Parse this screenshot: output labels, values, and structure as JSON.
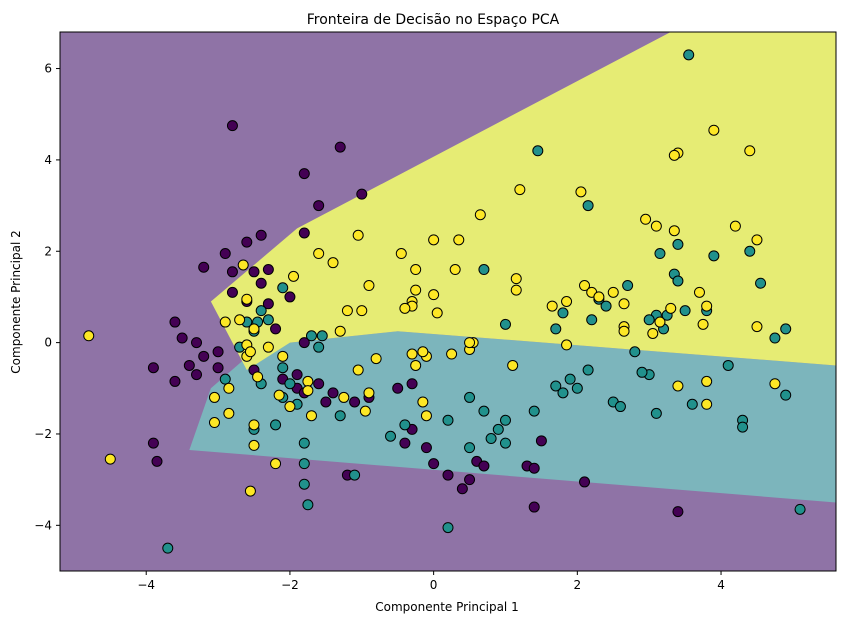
{
  "chart_data": {
    "type": "scatter",
    "title": "Fronteira de Decisão no Espaço PCA",
    "xlabel": "Componente Principal 1",
    "ylabel": "Componente Principal 2",
    "xlim": [
      -5.2,
      5.6
    ],
    "ylim": [
      -5.0,
      6.8
    ],
    "xticks": [
      -4,
      -2,
      0,
      2,
      4
    ],
    "yticks": [
      -4,
      -2,
      0,
      2,
      4,
      6
    ],
    "xtick_labels": [
      "−4",
      "−2",
      "0",
      "2",
      "4"
    ],
    "ytick_labels": [
      "−4",
      "−2",
      "0",
      "2",
      "4",
      "6"
    ],
    "grid": false,
    "colors": {
      "class0_point": "#440154",
      "class1_point": "#21918c",
      "class2_point": "#fde725",
      "region0": "#8f73a6",
      "region1": "#7cb5bc",
      "region2": "#e6ec74",
      "edge": "#000000"
    },
    "regions": [
      {
        "class": 1,
        "polygon": [
          [
            -0.5,
            0.25
          ],
          [
            5.6,
            -0.5
          ],
          [
            5.6,
            -3.5
          ],
          [
            -3.4,
            -2.35
          ],
          [
            -3.1,
            -1.0
          ],
          [
            -2.55,
            -0.25
          ],
          [
            -2.0,
            0.0
          ]
        ]
      },
      {
        "class": 2,
        "polygon": [
          [
            -3.1,
            0.9
          ],
          [
            -1.9,
            2.5
          ],
          [
            3.3,
            6.8
          ],
          [
            5.6,
            6.8
          ],
          [
            5.6,
            -0.5
          ],
          [
            -0.5,
            0.25
          ],
          [
            -2.0,
            0.0
          ],
          [
            -2.6,
            -0.6
          ]
        ]
      }
    ],
    "series": [
      {
        "class": 0,
        "points": [
          [
            -2.8,
            4.75
          ],
          [
            -1.3,
            4.28
          ],
          [
            -1.8,
            3.7
          ],
          [
            -1.6,
            3.0
          ],
          [
            -1.8,
            2.4
          ],
          [
            -1.0,
            3.25
          ],
          [
            -2.9,
            1.95
          ],
          [
            -2.6,
            2.2
          ],
          [
            -2.4,
            2.35
          ],
          [
            -3.2,
            1.65
          ],
          [
            -2.8,
            1.55
          ],
          [
            -2.5,
            1.55
          ],
          [
            -2.3,
            1.6
          ],
          [
            -2.4,
            1.3
          ],
          [
            -2.8,
            1.1
          ],
          [
            -2.3,
            0.85
          ],
          [
            -2.6,
            0.9
          ],
          [
            -2.0,
            1.0
          ],
          [
            -3.6,
            0.45
          ],
          [
            -3.5,
            0.1
          ],
          [
            -3.3,
            0.0
          ],
          [
            -3.2,
            -0.3
          ],
          [
            -3.0,
            -0.2
          ],
          [
            -3.4,
            -0.5
          ],
          [
            -3.3,
            -0.7
          ],
          [
            -3.0,
            -0.55
          ],
          [
            -2.5,
            -0.6
          ],
          [
            -2.2,
            0.3
          ],
          [
            -1.8,
            0.0
          ],
          [
            -2.1,
            -0.8
          ],
          [
            -1.9,
            -0.7
          ],
          [
            -1.9,
            -1.0
          ],
          [
            -1.6,
            -0.9
          ],
          [
            -1.4,
            -1.1
          ],
          [
            -1.1,
            -1.3
          ],
          [
            -1.5,
            -1.3
          ],
          [
            -3.9,
            -0.55
          ],
          [
            -3.6,
            -0.85
          ],
          [
            -3.9,
            -2.2
          ],
          [
            -3.85,
            -2.6
          ],
          [
            -1.2,
            -2.9
          ],
          [
            -0.3,
            -1.9
          ],
          [
            -0.4,
            -2.2
          ],
          [
            -0.1,
            -2.3
          ],
          [
            -0.5,
            -1.0
          ],
          [
            -0.3,
            -0.9
          ],
          [
            0.0,
            -2.65
          ],
          [
            0.2,
            -2.9
          ],
          [
            0.4,
            -3.2
          ],
          [
            0.6,
            -2.6
          ],
          [
            0.5,
            -3.0
          ],
          [
            0.7,
            -2.7
          ],
          [
            1.3,
            -2.7
          ],
          [
            1.4,
            -2.75
          ],
          [
            1.5,
            -2.15
          ],
          [
            2.1,
            -3.05
          ],
          [
            1.4,
            -3.6
          ],
          [
            3.4,
            -3.7
          ],
          [
            -0.9,
            -1.2
          ],
          [
            -1.8,
            -1.1
          ]
        ]
      },
      {
        "class": 1,
        "points": [
          [
            3.55,
            6.3
          ],
          [
            1.45,
            4.2
          ],
          [
            2.15,
            3.0
          ],
          [
            3.4,
            2.15
          ],
          [
            3.15,
            1.95
          ],
          [
            3.35,
            1.5
          ],
          [
            3.9,
            1.9
          ],
          [
            3.4,
            1.35
          ],
          [
            4.55,
            1.3
          ],
          [
            4.4,
            2.0
          ],
          [
            2.7,
            1.25
          ],
          [
            3.5,
            0.7
          ],
          [
            3.1,
            0.6
          ],
          [
            3.25,
            0.6
          ],
          [
            3.8,
            0.7
          ],
          [
            1.8,
            0.65
          ],
          [
            2.3,
            0.95
          ],
          [
            2.4,
            0.8
          ],
          [
            2.2,
            0.5
          ],
          [
            1.7,
            0.3
          ],
          [
            1.0,
            0.4
          ],
          [
            0.7,
            1.6
          ],
          [
            4.9,
            0.3
          ],
          [
            4.75,
            0.1
          ],
          [
            3.2,
            0.3
          ],
          [
            3.0,
            0.5
          ],
          [
            3.0,
            -0.7
          ],
          [
            2.8,
            -0.2
          ],
          [
            2.9,
            -0.65
          ],
          [
            1.9,
            -0.8
          ],
          [
            2.0,
            -1.0
          ],
          [
            2.15,
            -0.6
          ],
          [
            1.8,
            -1.1
          ],
          [
            1.7,
            -0.95
          ],
          [
            2.5,
            -1.3
          ],
          [
            2.6,
            -1.4
          ],
          [
            3.1,
            -1.55
          ],
          [
            3.6,
            -1.35
          ],
          [
            4.1,
            -0.5
          ],
          [
            4.3,
            -1.7
          ],
          [
            4.3,
            -1.85
          ],
          [
            4.9,
            -1.15
          ],
          [
            1.4,
            -1.5
          ],
          [
            1.0,
            -1.7
          ],
          [
            0.7,
            -1.5
          ],
          [
            0.5,
            -1.2
          ],
          [
            -0.6,
            -2.05
          ],
          [
            -0.4,
            -1.8
          ],
          [
            0.2,
            -1.7
          ],
          [
            0.5,
            -2.3
          ],
          [
            0.8,
            -2.1
          ],
          [
            0.9,
            -1.9
          ],
          [
            1.0,
            -2.2
          ],
          [
            -2.5,
            0.25
          ],
          [
            -2.45,
            0.45
          ],
          [
            -2.3,
            0.5
          ],
          [
            -2.4,
            0.7
          ],
          [
            -2.7,
            -0.1
          ],
          [
            -2.6,
            0.45
          ],
          [
            -2.1,
            1.2
          ],
          [
            -2.9,
            -0.8
          ],
          [
            -2.4,
            -0.9
          ],
          [
            -2.0,
            -0.9
          ],
          [
            -2.1,
            -1.2
          ],
          [
            -1.9,
            -1.35
          ],
          [
            -1.8,
            -2.2
          ],
          [
            -1.8,
            -2.65
          ],
          [
            -1.8,
            -3.1
          ],
          [
            -1.75,
            -3.55
          ],
          [
            -1.1,
            -2.9
          ],
          [
            -2.5,
            -1.9
          ],
          [
            -2.2,
            -1.8
          ],
          [
            -3.7,
            -4.5
          ],
          [
            0.2,
            -4.05
          ],
          [
            5.1,
            -3.65
          ],
          [
            -1.7,
            0.15
          ],
          [
            -1.55,
            0.15
          ],
          [
            -1.6,
            -0.1
          ],
          [
            -2.1,
            -0.55
          ],
          [
            -1.3,
            -1.6
          ]
        ]
      },
      {
        "class": 2,
        "points": [
          [
            3.9,
            4.65
          ],
          [
            3.4,
            4.15
          ],
          [
            3.35,
            4.1
          ],
          [
            4.4,
            4.2
          ],
          [
            1.2,
            3.35
          ],
          [
            2.05,
            3.3
          ],
          [
            0.65,
            2.8
          ],
          [
            2.95,
            2.7
          ],
          [
            3.1,
            2.55
          ],
          [
            3.35,
            2.45
          ],
          [
            4.2,
            2.55
          ],
          [
            4.5,
            2.25
          ],
          [
            0.0,
            2.25
          ],
          [
            0.35,
            2.25
          ],
          [
            -1.05,
            2.35
          ],
          [
            -0.45,
            1.95
          ],
          [
            -1.6,
            1.95
          ],
          [
            -1.4,
            1.75
          ],
          [
            -2.65,
            1.7
          ],
          [
            -1.95,
            1.45
          ],
          [
            -0.25,
            1.6
          ],
          [
            0.3,
            1.6
          ],
          [
            1.15,
            1.4
          ],
          [
            1.15,
            1.15
          ],
          [
            -0.25,
            1.15
          ],
          [
            -0.9,
            1.25
          ],
          [
            2.1,
            1.25
          ],
          [
            2.2,
            1.1
          ],
          [
            2.5,
            1.1
          ],
          [
            3.7,
            1.1
          ],
          [
            0.0,
            1.05
          ],
          [
            -0.3,
            0.9
          ],
          [
            -0.3,
            0.8
          ],
          [
            -0.4,
            0.75
          ],
          [
            0.05,
            0.65
          ],
          [
            -1.2,
            0.7
          ],
          [
            -1.0,
            0.7
          ],
          [
            1.65,
            0.8
          ],
          [
            1.85,
            0.9
          ],
          [
            2.3,
            1.0
          ],
          [
            2.65,
            0.85
          ],
          [
            3.3,
            0.75
          ],
          [
            2.65,
            0.35
          ],
          [
            2.65,
            0.25
          ],
          [
            3.05,
            0.2
          ],
          [
            3.15,
            0.45
          ],
          [
            3.75,
            0.4
          ],
          [
            3.8,
            0.8
          ],
          [
            4.5,
            0.35
          ],
          [
            -2.6,
            0.95
          ],
          [
            -2.7,
            0.5
          ],
          [
            -2.9,
            0.45
          ],
          [
            -2.5,
            0.3
          ],
          [
            -1.3,
            0.25
          ],
          [
            -2.6,
            -0.05
          ],
          [
            -2.6,
            -0.3
          ],
          [
            -2.55,
            -0.2
          ],
          [
            -2.3,
            -0.1
          ],
          [
            -2.1,
            -0.3
          ],
          [
            -2.45,
            -0.75
          ],
          [
            -1.75,
            -0.85
          ],
          [
            -1.05,
            -0.6
          ],
          [
            -0.8,
            -0.35
          ],
          [
            -0.3,
            -0.25
          ],
          [
            -0.1,
            -0.3
          ],
          [
            -0.15,
            -0.2
          ],
          [
            0.25,
            -0.25
          ],
          [
            0.5,
            -0.15
          ],
          [
            0.55,
            0.0
          ],
          [
            0.5,
            0.0
          ],
          [
            1.1,
            -0.5
          ],
          [
            1.85,
            -0.05
          ],
          [
            3.4,
            -0.95
          ],
          [
            3.8,
            -0.85
          ],
          [
            3.8,
            -1.35
          ],
          [
            4.75,
            -0.9
          ],
          [
            -0.95,
            -1.5
          ],
          [
            -0.9,
            -1.1
          ],
          [
            -1.25,
            -1.2
          ],
          [
            -1.75,
            -1.05
          ],
          [
            -2.0,
            -1.4
          ],
          [
            -2.15,
            -1.15
          ],
          [
            -3.05,
            -1.2
          ],
          [
            -3.05,
            -1.75
          ],
          [
            -2.85,
            -1.0
          ],
          [
            -2.85,
            -1.55
          ],
          [
            -2.5,
            -1.8
          ],
          [
            -2.5,
            -2.25
          ],
          [
            -2.2,
            -2.65
          ],
          [
            -1.7,
            -1.6
          ],
          [
            -0.1,
            -1.6
          ],
          [
            -0.15,
            -1.3
          ],
          [
            -0.25,
            -0.5
          ],
          [
            -4.8,
            0.15
          ],
          [
            -4.5,
            -2.55
          ],
          [
            -2.55,
            -3.25
          ]
        ]
      }
    ]
  }
}
